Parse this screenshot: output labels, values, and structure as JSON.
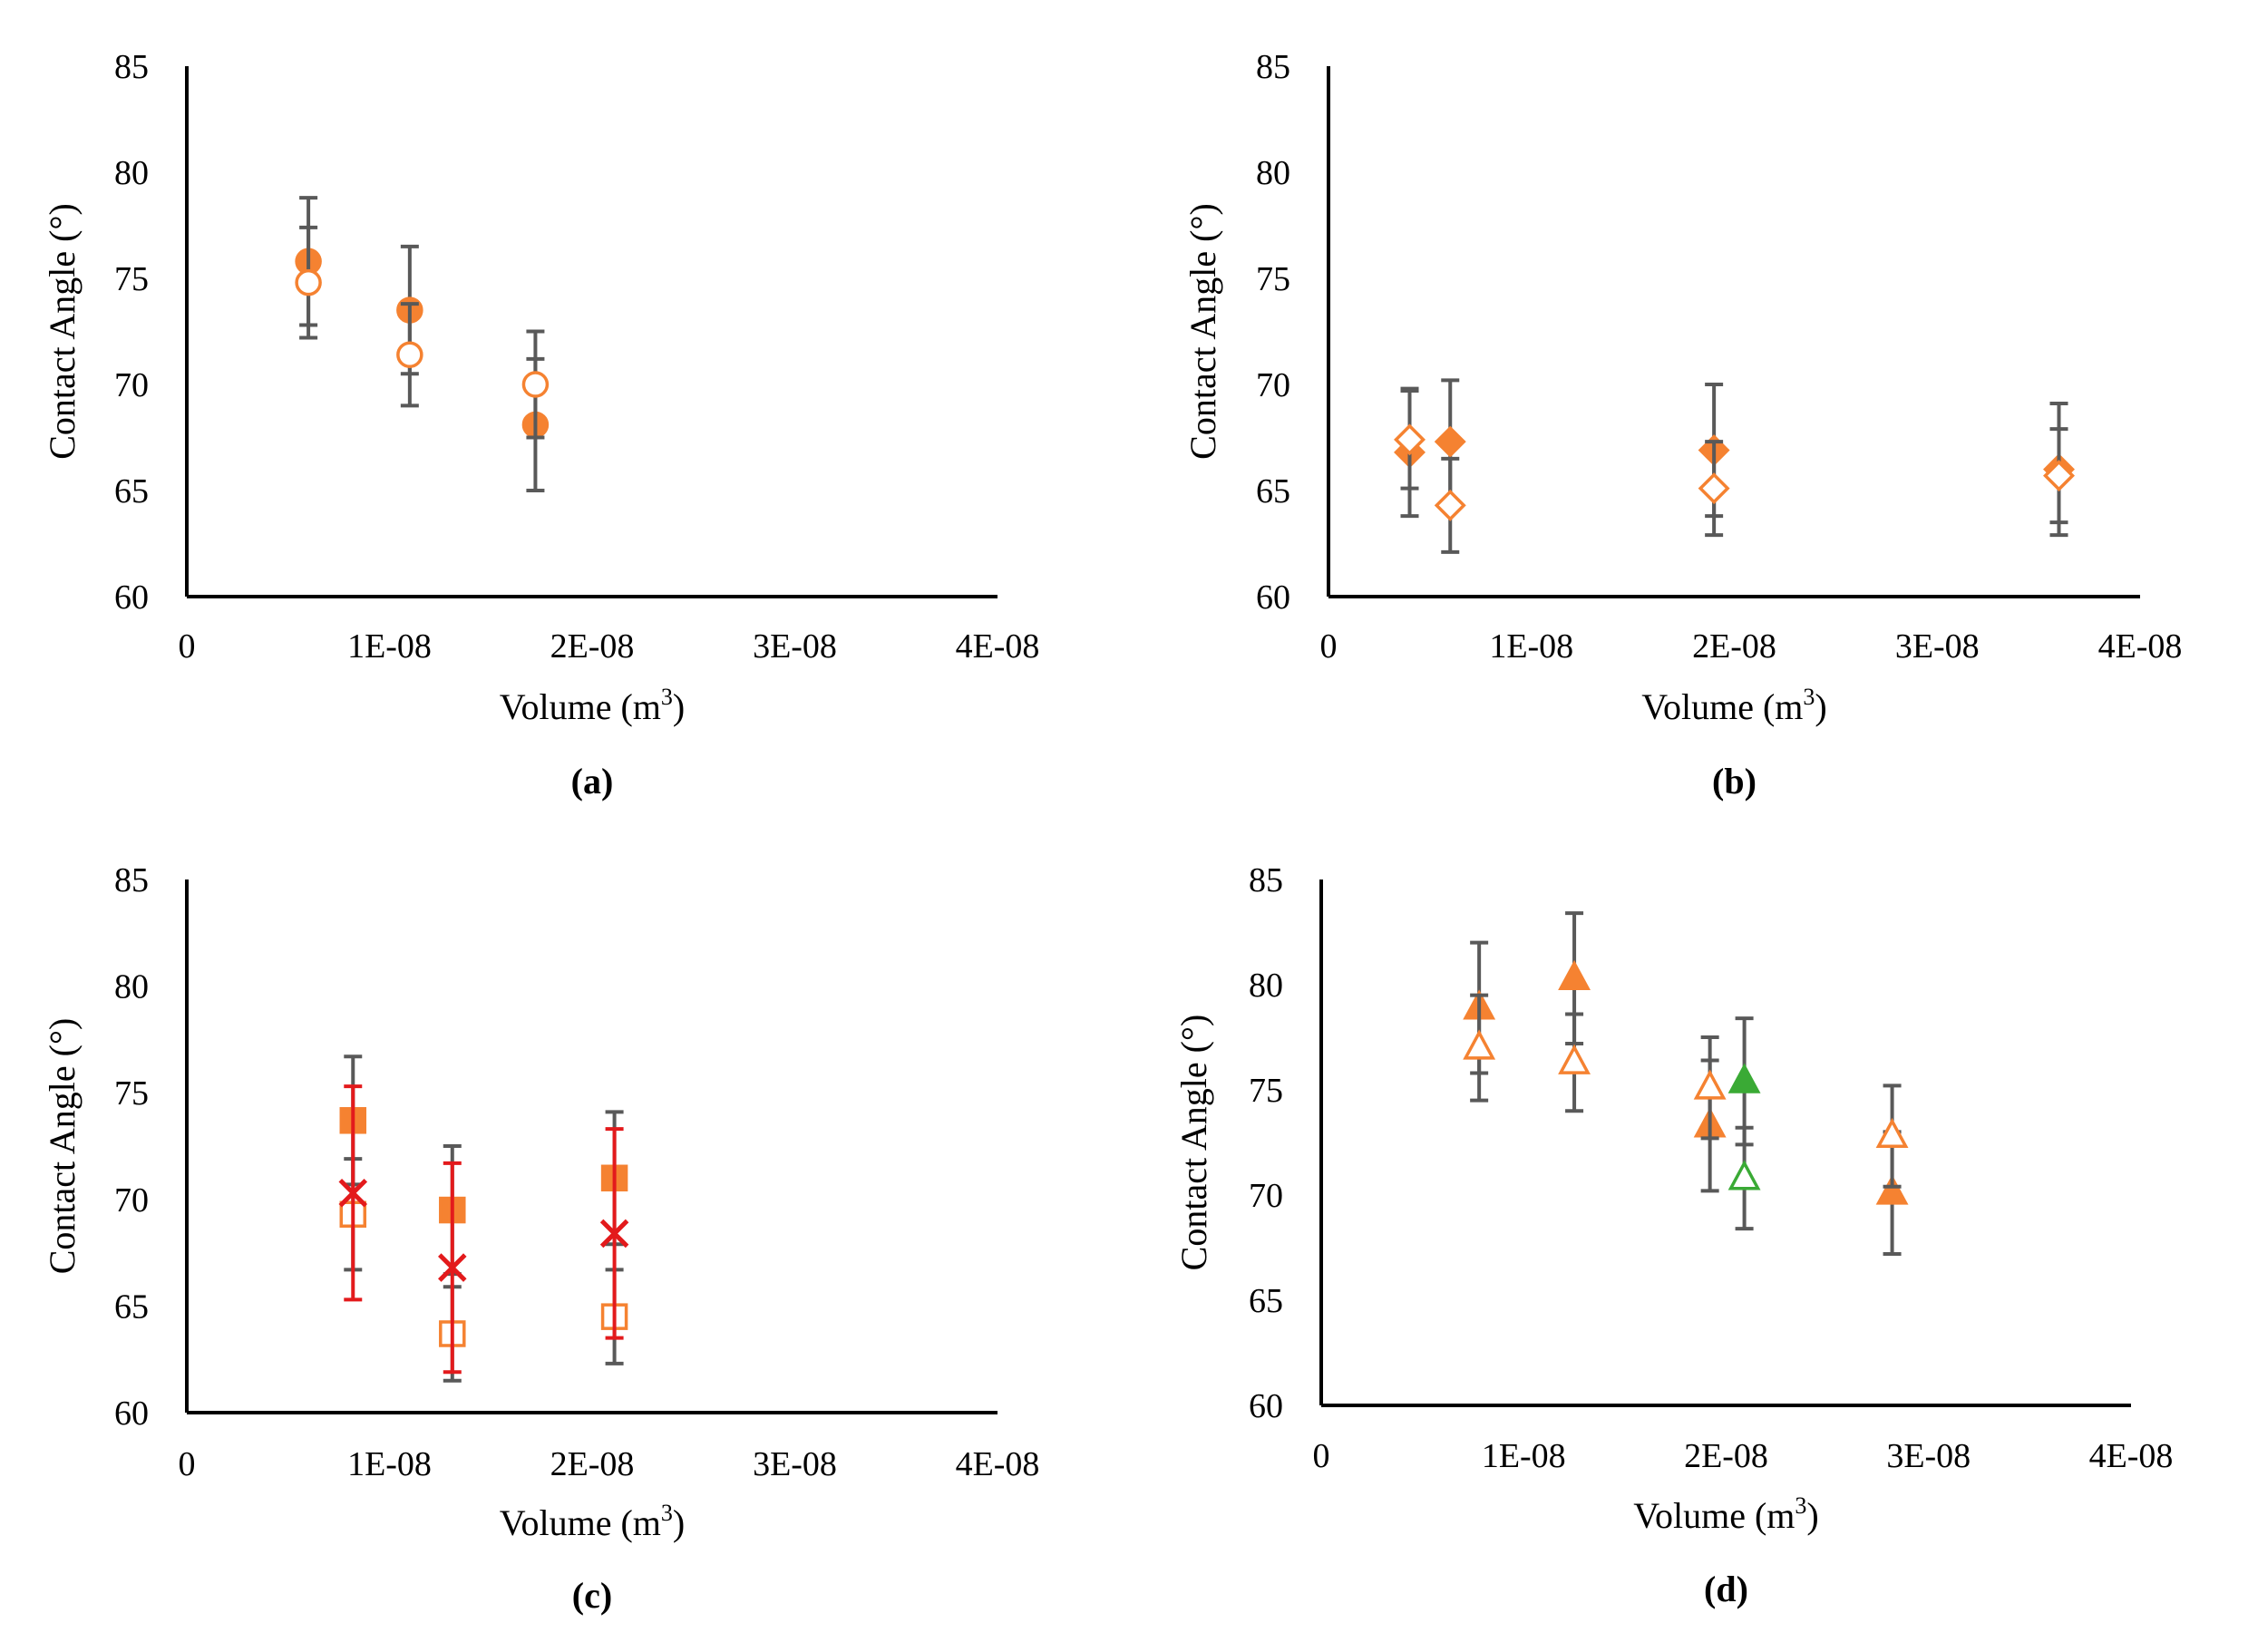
{
  "figure": {
    "description_labels": [
      "(a)",
      "(b)",
      "(c)",
      "(d)"
    ]
  },
  "colors": {
    "orange": "#f58231",
    "red": "#e31a1c",
    "green": "#3aaa35",
    "errorbar": "#595959",
    "errorbar_red": "#e31a1c"
  },
  "chart_data": [
    {
      "type": "scatter",
      "panel_label": "(a)",
      "xlabel": "Volume (m",
      "xlabel_sup": "3",
      "xlabel_end": ")",
      "ylabel": "Contact Angle (°)",
      "xlim": [
        0,
        4e-08
      ],
      "ylim": [
        60,
        85
      ],
      "xticks": [
        0,
        1e-08,
        2e-08,
        3e-08,
        4e-08
      ],
      "xtick_labels": [
        "0",
        "1E-08",
        "2E-08",
        "3E-08",
        "4E-08"
      ],
      "yticks": [
        60,
        65,
        70,
        75,
        80,
        85
      ],
      "ytick_labels": [
        "60",
        "65",
        "70",
        "75",
        "80",
        "85"
      ],
      "series": [
        {
          "name": "filled-circle",
          "marker": "circle",
          "filled": true,
          "color": "#f58231",
          "errcolor": "#595959",
          "x": [
            6e-09,
            1.1e-08,
            1.72e-08
          ],
          "y": [
            75.8,
            73.5,
            68.1
          ],
          "err": [
            3.0,
            3.0,
            3.1
          ]
        },
        {
          "name": "open-circle",
          "marker": "circle",
          "filled": false,
          "color": "#f58231",
          "errcolor": "#595959",
          "x": [
            6e-09,
            1.1e-08,
            1.72e-08
          ],
          "y": [
            74.8,
            71.4,
            70.0
          ],
          "err": [
            2.6,
            2.4,
            2.5
          ]
        }
      ]
    },
    {
      "type": "scatter",
      "panel_label": "(b)",
      "xlabel": "Volume (m",
      "xlabel_sup": "3",
      "xlabel_end": ")",
      "ylabel": "Contact Angle (°)",
      "xlim": [
        0,
        4e-08
      ],
      "ylim": [
        60,
        85
      ],
      "xticks": [
        0,
        1e-08,
        2e-08,
        3e-08,
        4e-08
      ],
      "xtick_labels": [
        "0",
        "1E-08",
        "2E-08",
        "3E-08",
        "4E-08"
      ],
      "yticks": [
        60,
        65,
        70,
        75,
        80,
        85
      ],
      "ytick_labels": [
        "60",
        "65",
        "70",
        "75",
        "80",
        "85"
      ],
      "series": [
        {
          "name": "filled-diamond",
          "marker": "diamond",
          "filled": true,
          "color": "#f58231",
          "errcolor": "#595959",
          "x": [
            4e-09,
            6e-09,
            1.9e-08,
            3.6e-08
          ],
          "y": [
            66.8,
            67.3,
            66.9,
            66.0
          ],
          "err": [
            3.0,
            2.9,
            3.1,
            3.1
          ]
        },
        {
          "name": "open-diamond",
          "marker": "diamond",
          "filled": false,
          "color": "#f58231",
          "errcolor": "#595959",
          "x": [
            4e-09,
            6e-09,
            1.9e-08,
            3.6e-08
          ],
          "y": [
            67.4,
            64.3,
            65.1,
            65.7
          ],
          "err": [
            2.3,
            2.2,
            2.2,
            2.2
          ]
        }
      ]
    },
    {
      "type": "scatter",
      "panel_label": "(c)",
      "xlabel": "Volume (m",
      "xlabel_sup": "3",
      "xlabel_end": ")",
      "ylabel": "Contact Angle (°)",
      "xlim": [
        0,
        4e-08
      ],
      "ylim": [
        60,
        85
      ],
      "xticks": [
        0,
        1e-08,
        2e-08,
        3e-08,
        4e-08
      ],
      "xtick_labels": [
        "0",
        "1E-08",
        "2E-08",
        "3E-08",
        "4E-08"
      ],
      "yticks": [
        60,
        65,
        70,
        75,
        80,
        85
      ],
      "ytick_labels": [
        "60",
        "65",
        "70",
        "75",
        "80",
        "85"
      ],
      "series": [
        {
          "name": "filled-square",
          "marker": "square",
          "filled": true,
          "color": "#f58231",
          "errcolor": "#595959",
          "x": [
            8.2e-09,
            1.31e-08,
            2.11e-08
          ],
          "y": [
            73.7,
            69.5,
            71.0
          ],
          "err": [
            3.0,
            3.0,
            3.1
          ]
        },
        {
          "name": "open-square",
          "marker": "square",
          "filled": false,
          "color": "#f58231",
          "errcolor": "#595959",
          "x": [
            8.2e-09,
            1.31e-08,
            2.11e-08
          ],
          "y": [
            69.3,
            63.7,
            64.5
          ],
          "err": [
            2.6,
            2.2,
            2.2
          ]
        },
        {
          "name": "cross",
          "marker": "cross",
          "filled": true,
          "color": "#e31a1c",
          "errcolor": "#e31a1c",
          "x": [
            8.2e-09,
            1.31e-08,
            2.11e-08
          ],
          "y": [
            70.3,
            66.8,
            68.4
          ],
          "err": [
            5.0,
            4.9,
            4.9
          ]
        }
      ]
    },
    {
      "type": "scatter",
      "panel_label": "(d)",
      "xlabel": "Volume (m",
      "xlabel_sup": "3",
      "xlabel_end": ")",
      "ylabel": "Contact Angle (°)",
      "xlim": [
        0,
        4e-08
      ],
      "ylim": [
        60,
        85
      ],
      "xticks": [
        0,
        1e-08,
        2e-08,
        3e-08,
        4e-08
      ],
      "xtick_labels": [
        "0",
        "1E-08",
        "2E-08",
        "3E-08",
        "4E-08"
      ],
      "yticks": [
        60,
        65,
        70,
        75,
        80,
        85
      ],
      "ytick_labels": [
        "60",
        "65",
        "70",
        "75",
        "80",
        "85"
      ],
      "series": [
        {
          "name": "filled-triangle-orange",
          "marker": "triangle",
          "filled": true,
          "color": "#f58231",
          "errcolor": "#595959",
          "x": [
            7.8e-09,
            1.25e-08,
            1.92e-08,
            2.82e-08
          ],
          "y": [
            78.9,
            80.3,
            73.3,
            70.1
          ],
          "err": [
            3.1,
            3.1,
            3.1,
            2.9
          ]
        },
        {
          "name": "open-triangle-orange",
          "marker": "triangle",
          "filled": false,
          "color": "#f58231",
          "errcolor": "#595959",
          "x": [
            7.8e-09,
            1.25e-08,
            1.92e-08,
            2.82e-08
          ],
          "y": [
            77.0,
            76.3,
            75.1,
            72.8
          ],
          "err": [
            2.5,
            2.3,
            2.4,
            2.4
          ]
        },
        {
          "name": "filled-triangle-green",
          "marker": "triangle",
          "filled": true,
          "color": "#3aaa35",
          "errcolor": "#595959",
          "x": [
            2.09e-08
          ],
          "y": [
            75.4
          ],
          "err": [
            3.0
          ]
        },
        {
          "name": "open-triangle-green",
          "marker": "triangle",
          "filled": false,
          "color": "#3aaa35",
          "errcolor": "#595959",
          "x": [
            2.09e-08
          ],
          "y": [
            70.8
          ],
          "err": [
            2.4
          ]
        }
      ]
    }
  ]
}
